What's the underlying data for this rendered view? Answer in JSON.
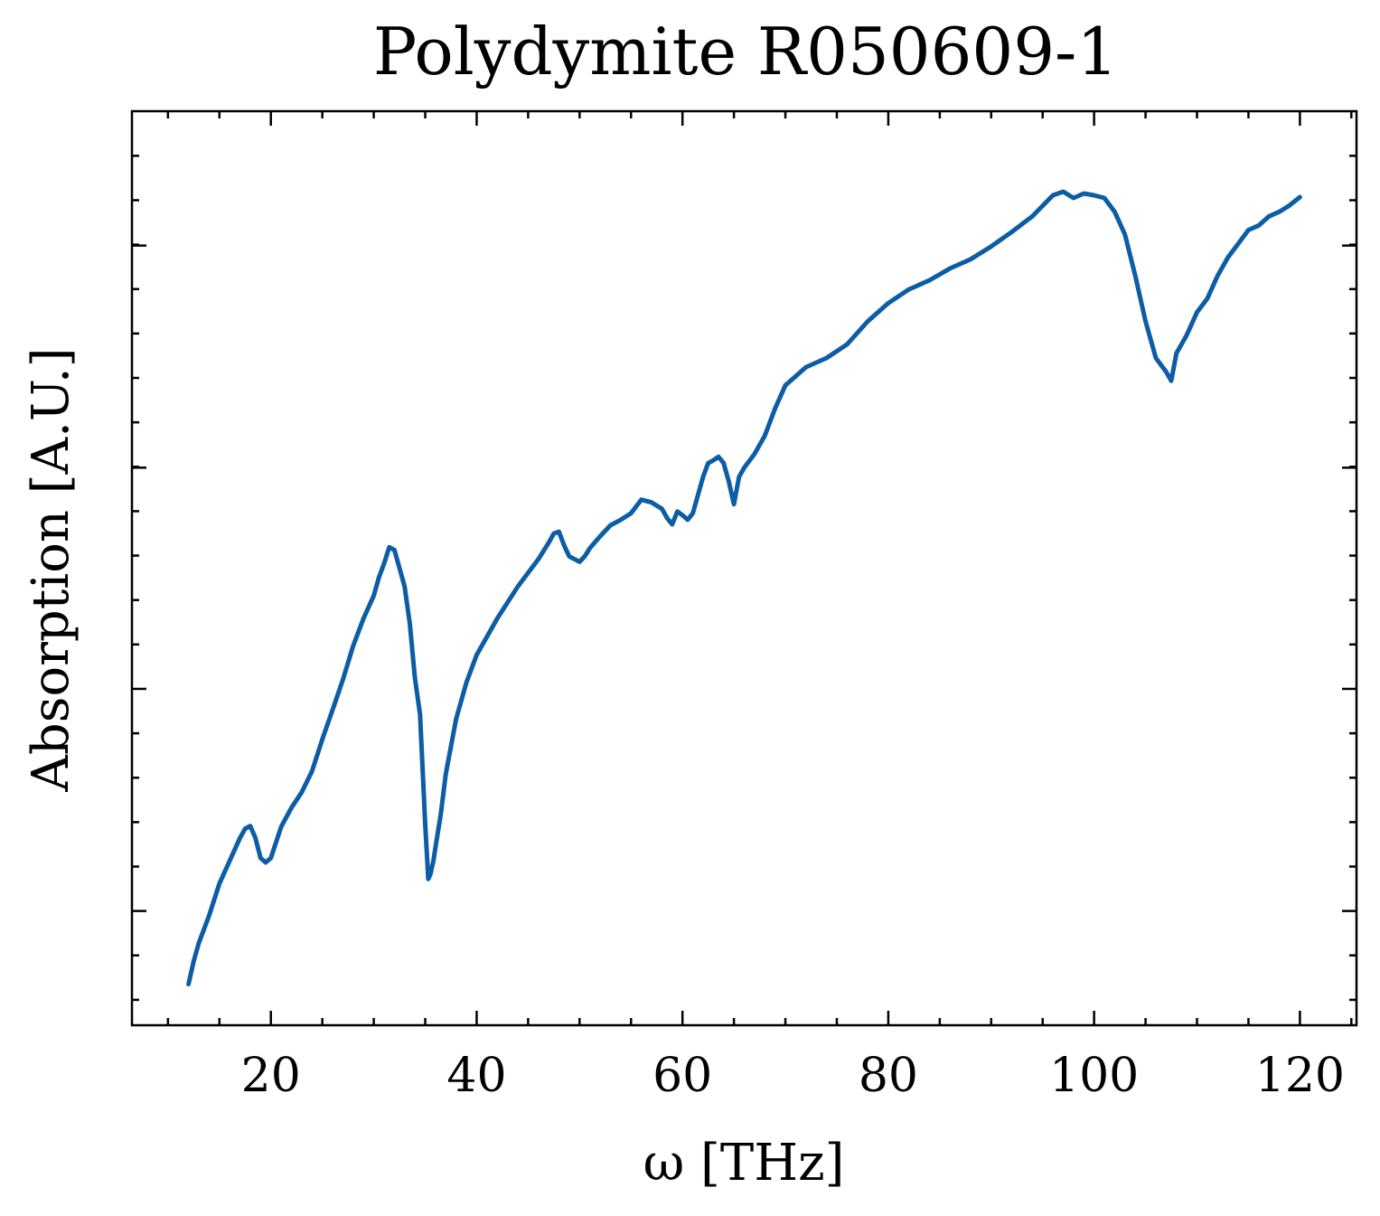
{
  "chart_data": {
    "type": "line",
    "title": "Polydymite R050609-1",
    "xlabel": "ω [THz]",
    "ylabel": "Absorption [A.U.]",
    "xlim": [
      6.5,
      125.5
    ],
    "ylim": [
      0,
      1
    ],
    "x_ticks": [
      20,
      40,
      60,
      80,
      100,
      120
    ],
    "x_tick_labels": [
      "20",
      "40",
      "60",
      "80",
      "100",
      "120"
    ],
    "y_tick_labels_shown": false,
    "grid": false,
    "line_color": "#0C5DA5",
    "series": [
      {
        "x": [
          12.0,
          12.5,
          13.0,
          14.0,
          15.0,
          16.0,
          17.0,
          17.5,
          18.0,
          18.5,
          19.0,
          19.5,
          20.0,
          20.5,
          21.0,
          22.0,
          23.0,
          24.0,
          25.0,
          26.0,
          27.0,
          28.0,
          29.0,
          30.0,
          30.5,
          31.0,
          31.5,
          32.0,
          32.5,
          33.0,
          33.5,
          34.0,
          34.5,
          35.0,
          35.3,
          35.5,
          35.8,
          36.0,
          36.5,
          37.0,
          38.0,
          39.0,
          40.0,
          42.0,
          44.0,
          46.0,
          47.0,
          47.5,
          48.0,
          48.5,
          49.0,
          49.5,
          50.0,
          50.5,
          51.0,
          52.0,
          53.0,
          54.0,
          55.0,
          56.0,
          57.0,
          58.0,
          58.5,
          59.0,
          59.5,
          60.0,
          60.5,
          61.0,
          61.5,
          62.0,
          62.5,
          63.0,
          63.5,
          64.0,
          64.5,
          65.0,
          65.5,
          66.0,
          67.0,
          68.0,
          69.0,
          70.0,
          71.0,
          72.0,
          74.0,
          76.0,
          78.0,
          80.0,
          82.0,
          84.0,
          86.0,
          88.0,
          90.0,
          92.0,
          94.0,
          96.0,
          97.0,
          98.0,
          99.0,
          100.0,
          101.0,
          102.0,
          103.0,
          104.0,
          105.0,
          106.0,
          107.0,
          107.5,
          108.0,
          108.5,
          109.0,
          110.0,
          111.0,
          112.0,
          113.0,
          114.0,
          115.0,
          116.0,
          117.0,
          118.0,
          119.0,
          120.0
        ],
        "y": [
          0.045,
          0.07,
          0.09,
          0.12,
          0.155,
          0.18,
          0.205,
          0.215,
          0.218,
          0.205,
          0.183,
          0.178,
          0.183,
          0.2,
          0.217,
          0.238,
          0.255,
          0.278,
          0.313,
          0.345,
          0.378,
          0.415,
          0.445,
          0.47,
          0.49,
          0.505,
          0.523,
          0.52,
          0.5,
          0.48,
          0.44,
          0.38,
          0.34,
          0.22,
          0.16,
          0.165,
          0.18,
          0.195,
          0.23,
          0.275,
          0.335,
          0.375,
          0.405,
          0.445,
          0.48,
          0.51,
          0.528,
          0.538,
          0.54,
          0.525,
          0.513,
          0.51,
          0.507,
          0.513,
          0.522,
          0.535,
          0.547,
          0.553,
          0.56,
          0.575,
          0.572,
          0.565,
          0.555,
          0.548,
          0.562,
          0.558,
          0.553,
          0.56,
          0.58,
          0.6,
          0.615,
          0.618,
          0.622,
          0.615,
          0.595,
          0.57,
          0.6,
          0.61,
          0.625,
          0.645,
          0.675,
          0.7,
          0.71,
          0.72,
          0.73,
          0.745,
          0.77,
          0.79,
          0.805,
          0.815,
          0.828,
          0.838,
          0.852,
          0.868,
          0.885,
          0.908,
          0.912,
          0.905,
          0.91,
          0.908,
          0.905,
          0.89,
          0.865,
          0.82,
          0.77,
          0.73,
          0.715,
          0.705,
          0.735,
          0.745,
          0.755,
          0.78,
          0.795,
          0.82,
          0.84,
          0.855,
          0.87,
          0.875,
          0.885,
          0.89,
          0.897,
          0.906
        ]
      }
    ]
  }
}
